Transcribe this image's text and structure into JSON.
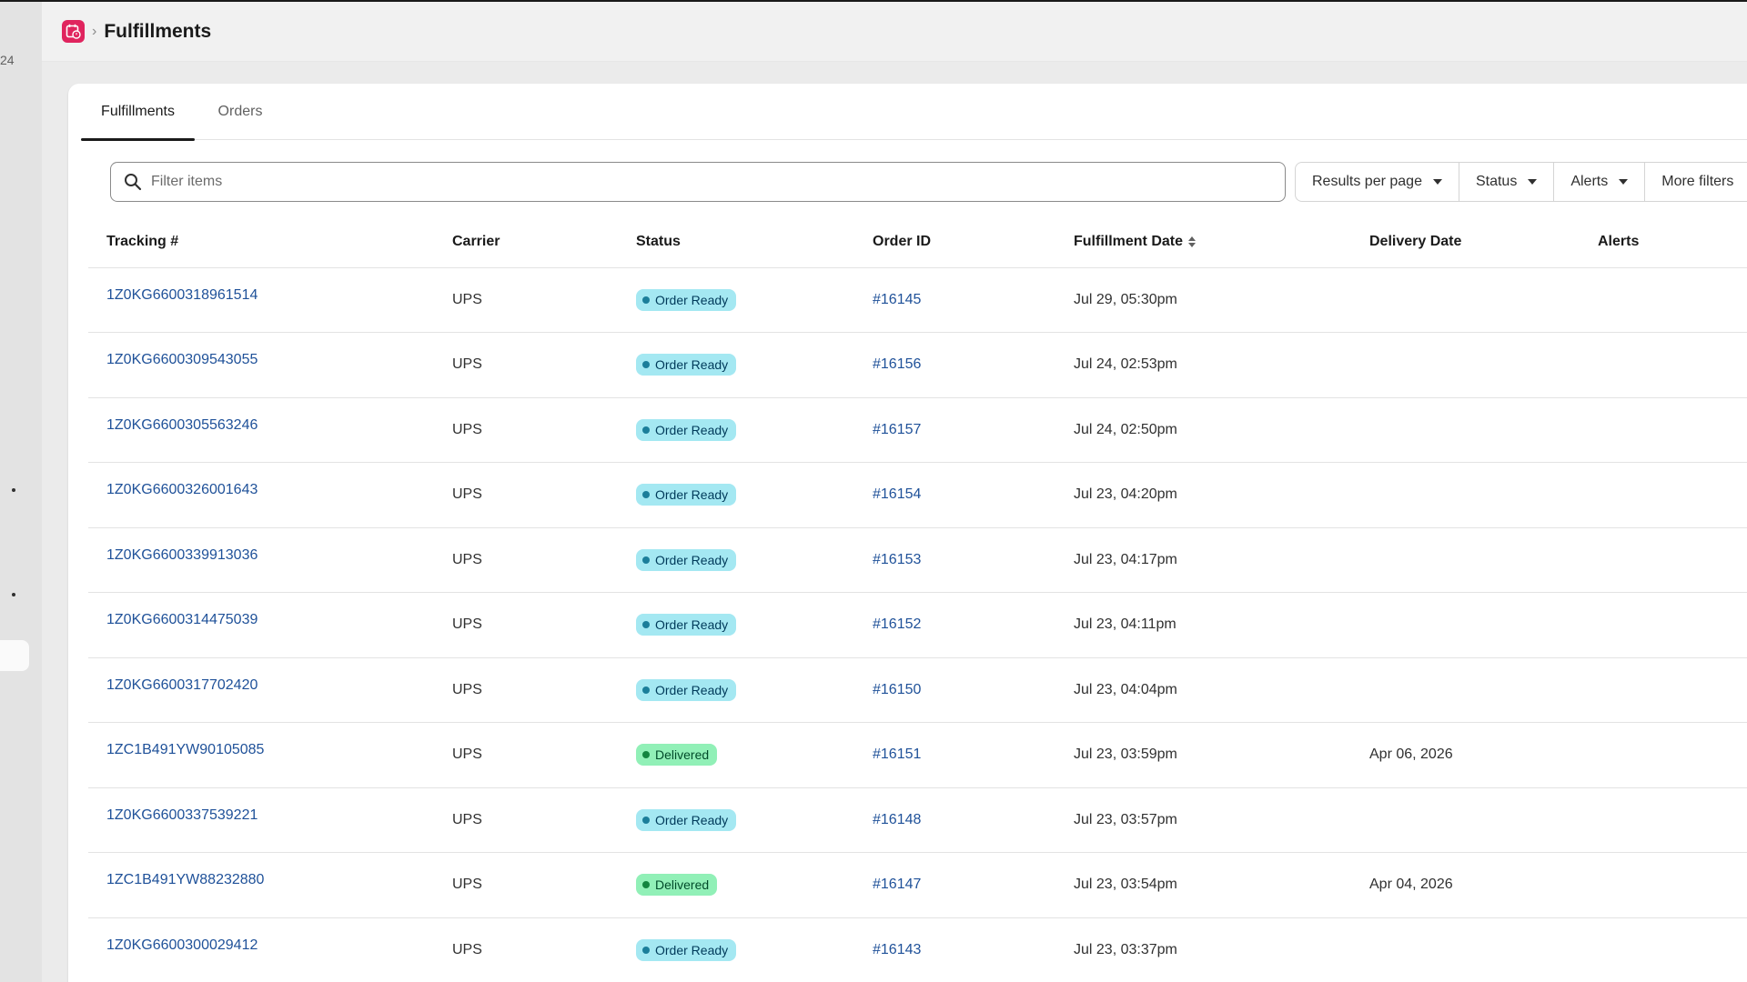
{
  "header": {
    "left_count": "24",
    "breadcrumb_separator": "›",
    "title": "Fulfillments"
  },
  "tabs": [
    {
      "label": "Fulfillments",
      "active": true
    },
    {
      "label": "Orders",
      "active": false
    }
  ],
  "search": {
    "placeholder": "Filter items",
    "value": ""
  },
  "filters": [
    {
      "label": "Results per page"
    },
    {
      "label": "Status"
    },
    {
      "label": "Alerts"
    },
    {
      "label": "More filters"
    }
  ],
  "table": {
    "columns": [
      "Tracking #",
      "Carrier",
      "Status",
      "Order ID",
      "Fulfillment Date",
      "Delivery Date",
      "Alerts"
    ],
    "sorted_column": "Fulfillment Date",
    "rows": [
      {
        "tracking": "1Z0KG6600318961514",
        "carrier": "UPS",
        "status": "Order Ready",
        "status_kind": "ready",
        "order_id": "#16145",
        "fulfillment_date": "Jul 29, 05:30pm",
        "delivery_date": "",
        "alerts": ""
      },
      {
        "tracking": "1Z0KG6600309543055",
        "carrier": "UPS",
        "status": "Order Ready",
        "status_kind": "ready",
        "order_id": "#16156",
        "fulfillment_date": "Jul 24, 02:53pm",
        "delivery_date": "",
        "alerts": ""
      },
      {
        "tracking": "1Z0KG6600305563246",
        "carrier": "UPS",
        "status": "Order Ready",
        "status_kind": "ready",
        "order_id": "#16157",
        "fulfillment_date": "Jul 24, 02:50pm",
        "delivery_date": "",
        "alerts": ""
      },
      {
        "tracking": "1Z0KG6600326001643",
        "carrier": "UPS",
        "status": "Order Ready",
        "status_kind": "ready",
        "order_id": "#16154",
        "fulfillment_date": "Jul 23, 04:20pm",
        "delivery_date": "",
        "alerts": ""
      },
      {
        "tracking": "1Z0KG6600339913036",
        "carrier": "UPS",
        "status": "Order Ready",
        "status_kind": "ready",
        "order_id": "#16153",
        "fulfillment_date": "Jul 23, 04:17pm",
        "delivery_date": "",
        "alerts": ""
      },
      {
        "tracking": "1Z0KG6600314475039",
        "carrier": "UPS",
        "status": "Order Ready",
        "status_kind": "ready",
        "order_id": "#16152",
        "fulfillment_date": "Jul 23, 04:11pm",
        "delivery_date": "",
        "alerts": ""
      },
      {
        "tracking": "1Z0KG6600317702420",
        "carrier": "UPS",
        "status": "Order Ready",
        "status_kind": "ready",
        "order_id": "#16150",
        "fulfillment_date": "Jul 23, 04:04pm",
        "delivery_date": "",
        "alerts": ""
      },
      {
        "tracking": "1ZC1B491YW90105085",
        "carrier": "UPS",
        "status": "Delivered",
        "status_kind": "delivered",
        "order_id": "#16151",
        "fulfillment_date": "Jul 23, 03:59pm",
        "delivery_date": "Apr 06, 2026",
        "alerts": ""
      },
      {
        "tracking": "1Z0KG6600337539221",
        "carrier": "UPS",
        "status": "Order Ready",
        "status_kind": "ready",
        "order_id": "#16148",
        "fulfillment_date": "Jul 23, 03:57pm",
        "delivery_date": "",
        "alerts": ""
      },
      {
        "tracking": "1ZC1B491YW88232880",
        "carrier": "UPS",
        "status": "Delivered",
        "status_kind": "delivered",
        "order_id": "#16147",
        "fulfillment_date": "Jul 23, 03:54pm",
        "delivery_date": "Apr 04, 2026",
        "alerts": ""
      },
      {
        "tracking": "1Z0KG6600300029412",
        "carrier": "UPS",
        "status": "Order Ready",
        "status_kind": "ready",
        "order_id": "#16143",
        "fulfillment_date": "Jul 23, 03:37pm",
        "delivery_date": "",
        "alerts": ""
      }
    ]
  },
  "icons": {
    "app": "calendar-icon",
    "search": "search-icon",
    "sort": "sort-icon",
    "caret": "caret-down-icon"
  },
  "colors": {
    "app_icon": "#e0245e",
    "link": "#1f5199",
    "badge_ready": "#a4e8f2",
    "badge_delivered": "#91f0b7"
  }
}
